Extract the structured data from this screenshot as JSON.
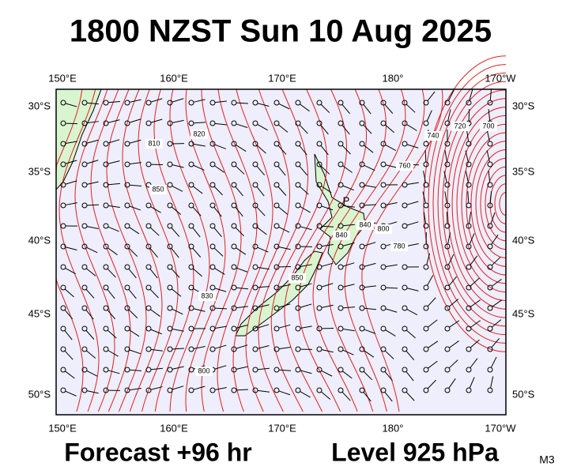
{
  "header": {
    "title": "1800 NZST Sun 10 Aug 2025"
  },
  "map": {
    "lon_labels": [
      "150°E",
      "160°E",
      "170°E",
      "180°",
      "170°W"
    ],
    "lat_labels": [
      "30°S",
      "35°S",
      "40°S",
      "45°S",
      "50°S"
    ],
    "contour_labels": [
      "820",
      "810",
      "850",
      "840",
      "850",
      "830",
      "800",
      "840",
      "800",
      "780",
      "760",
      "740",
      "720",
      "700"
    ],
    "pressure_marker": "P"
  },
  "footer": {
    "forecast": "Forecast +96 hr",
    "level": "Level 925 hPa",
    "code": "M3"
  }
}
